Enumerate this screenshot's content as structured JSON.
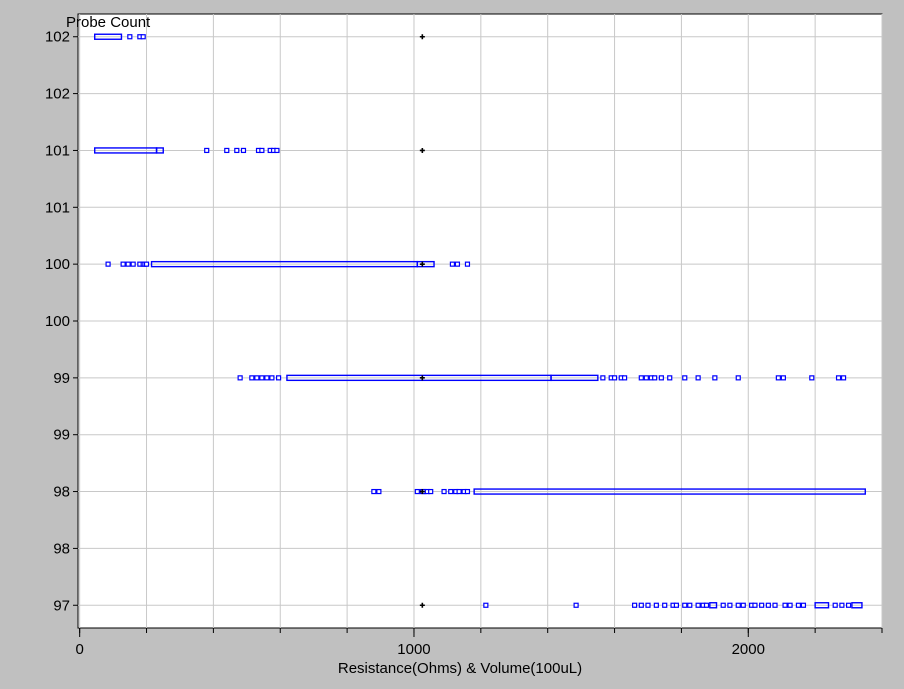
{
  "chart_data": {
    "type": "scatter",
    "title": "",
    "ylabel": "Probe Count",
    "xlabel": "Resistance(Ohms) & Volume(100uL)",
    "xlim": [
      -5,
      2400
    ],
    "ylim": [
      96.8,
      102.2
    ],
    "x_ticks": [
      0,
      1000,
      2000
    ],
    "x_minor_step": 200,
    "y_ticks": [
      102,
      101.5,
      101,
      100.5,
      100,
      99.5,
      99,
      98.5,
      98,
      97.5,
      97
    ],
    "y_tick_labels": [
      "102",
      "102",
      "101",
      "101",
      "100",
      "100",
      "99",
      "99",
      "98",
      "98",
      "97"
    ],
    "grid": true,
    "series_color": "#0000ff",
    "marker_color": "#000000",
    "series": [
      {
        "y": 102,
        "segments": [
          [
            45,
            125
          ]
        ],
        "x": [
          150,
          180,
          190
        ]
      },
      {
        "y": 101,
        "segments": [
          [
            45,
            230
          ],
          [
            230,
            250
          ]
        ],
        "x": [
          380,
          440,
          470,
          490,
          535,
          545,
          570,
          580,
          590
        ]
      },
      {
        "y": 100,
        "segments": [
          [
            215,
            1010
          ],
          [
            1010,
            1060
          ]
        ],
        "x": [
          85,
          130,
          145,
          160,
          180,
          190,
          195,
          200,
          1115,
          1130,
          1160
        ]
      },
      {
        "y": 99,
        "segments": [
          [
            620,
            1410
          ],
          [
            1410,
            1550
          ]
        ],
        "x": [
          480,
          515,
          530,
          545,
          560,
          575,
          595,
          1565,
          1590,
          1600,
          1620,
          1630,
          1680,
          1695,
          1710,
          1720,
          1740,
          1765,
          1810,
          1850,
          1900,
          1970,
          2090,
          2105,
          2190,
          2270,
          2285
        ]
      },
      {
        "y": 98,
        "segments": [
          [
            1180,
            2350
          ]
        ],
        "x": [
          880,
          895,
          1010,
          1025,
          1030,
          1040,
          1050,
          1090,
          1110,
          1125,
          1135,
          1150,
          1160
        ]
      },
      {
        "y": 97,
        "segments": [
          [
            1885,
            1905
          ],
          [
            2200,
            2240
          ],
          [
            2310,
            2340
          ]
        ],
        "x": [
          1215,
          1485,
          1660,
          1680,
          1700,
          1725,
          1750,
          1775,
          1785,
          1810,
          1825,
          1850,
          1865,
          1875,
          1925,
          1945,
          1970,
          1985,
          2010,
          2020,
          2040,
          2060,
          2080,
          2110,
          2125,
          2150,
          2165,
          2260,
          2280,
          2300
        ]
      }
    ],
    "markers": [
      {
        "x": 1025,
        "y": 102
      },
      {
        "x": 1025,
        "y": 101
      },
      {
        "x": 1025,
        "y": 100
      },
      {
        "x": 1025,
        "y": 99
      },
      {
        "x": 1025,
        "y": 98
      },
      {
        "x": 1025,
        "y": 97
      }
    ]
  }
}
